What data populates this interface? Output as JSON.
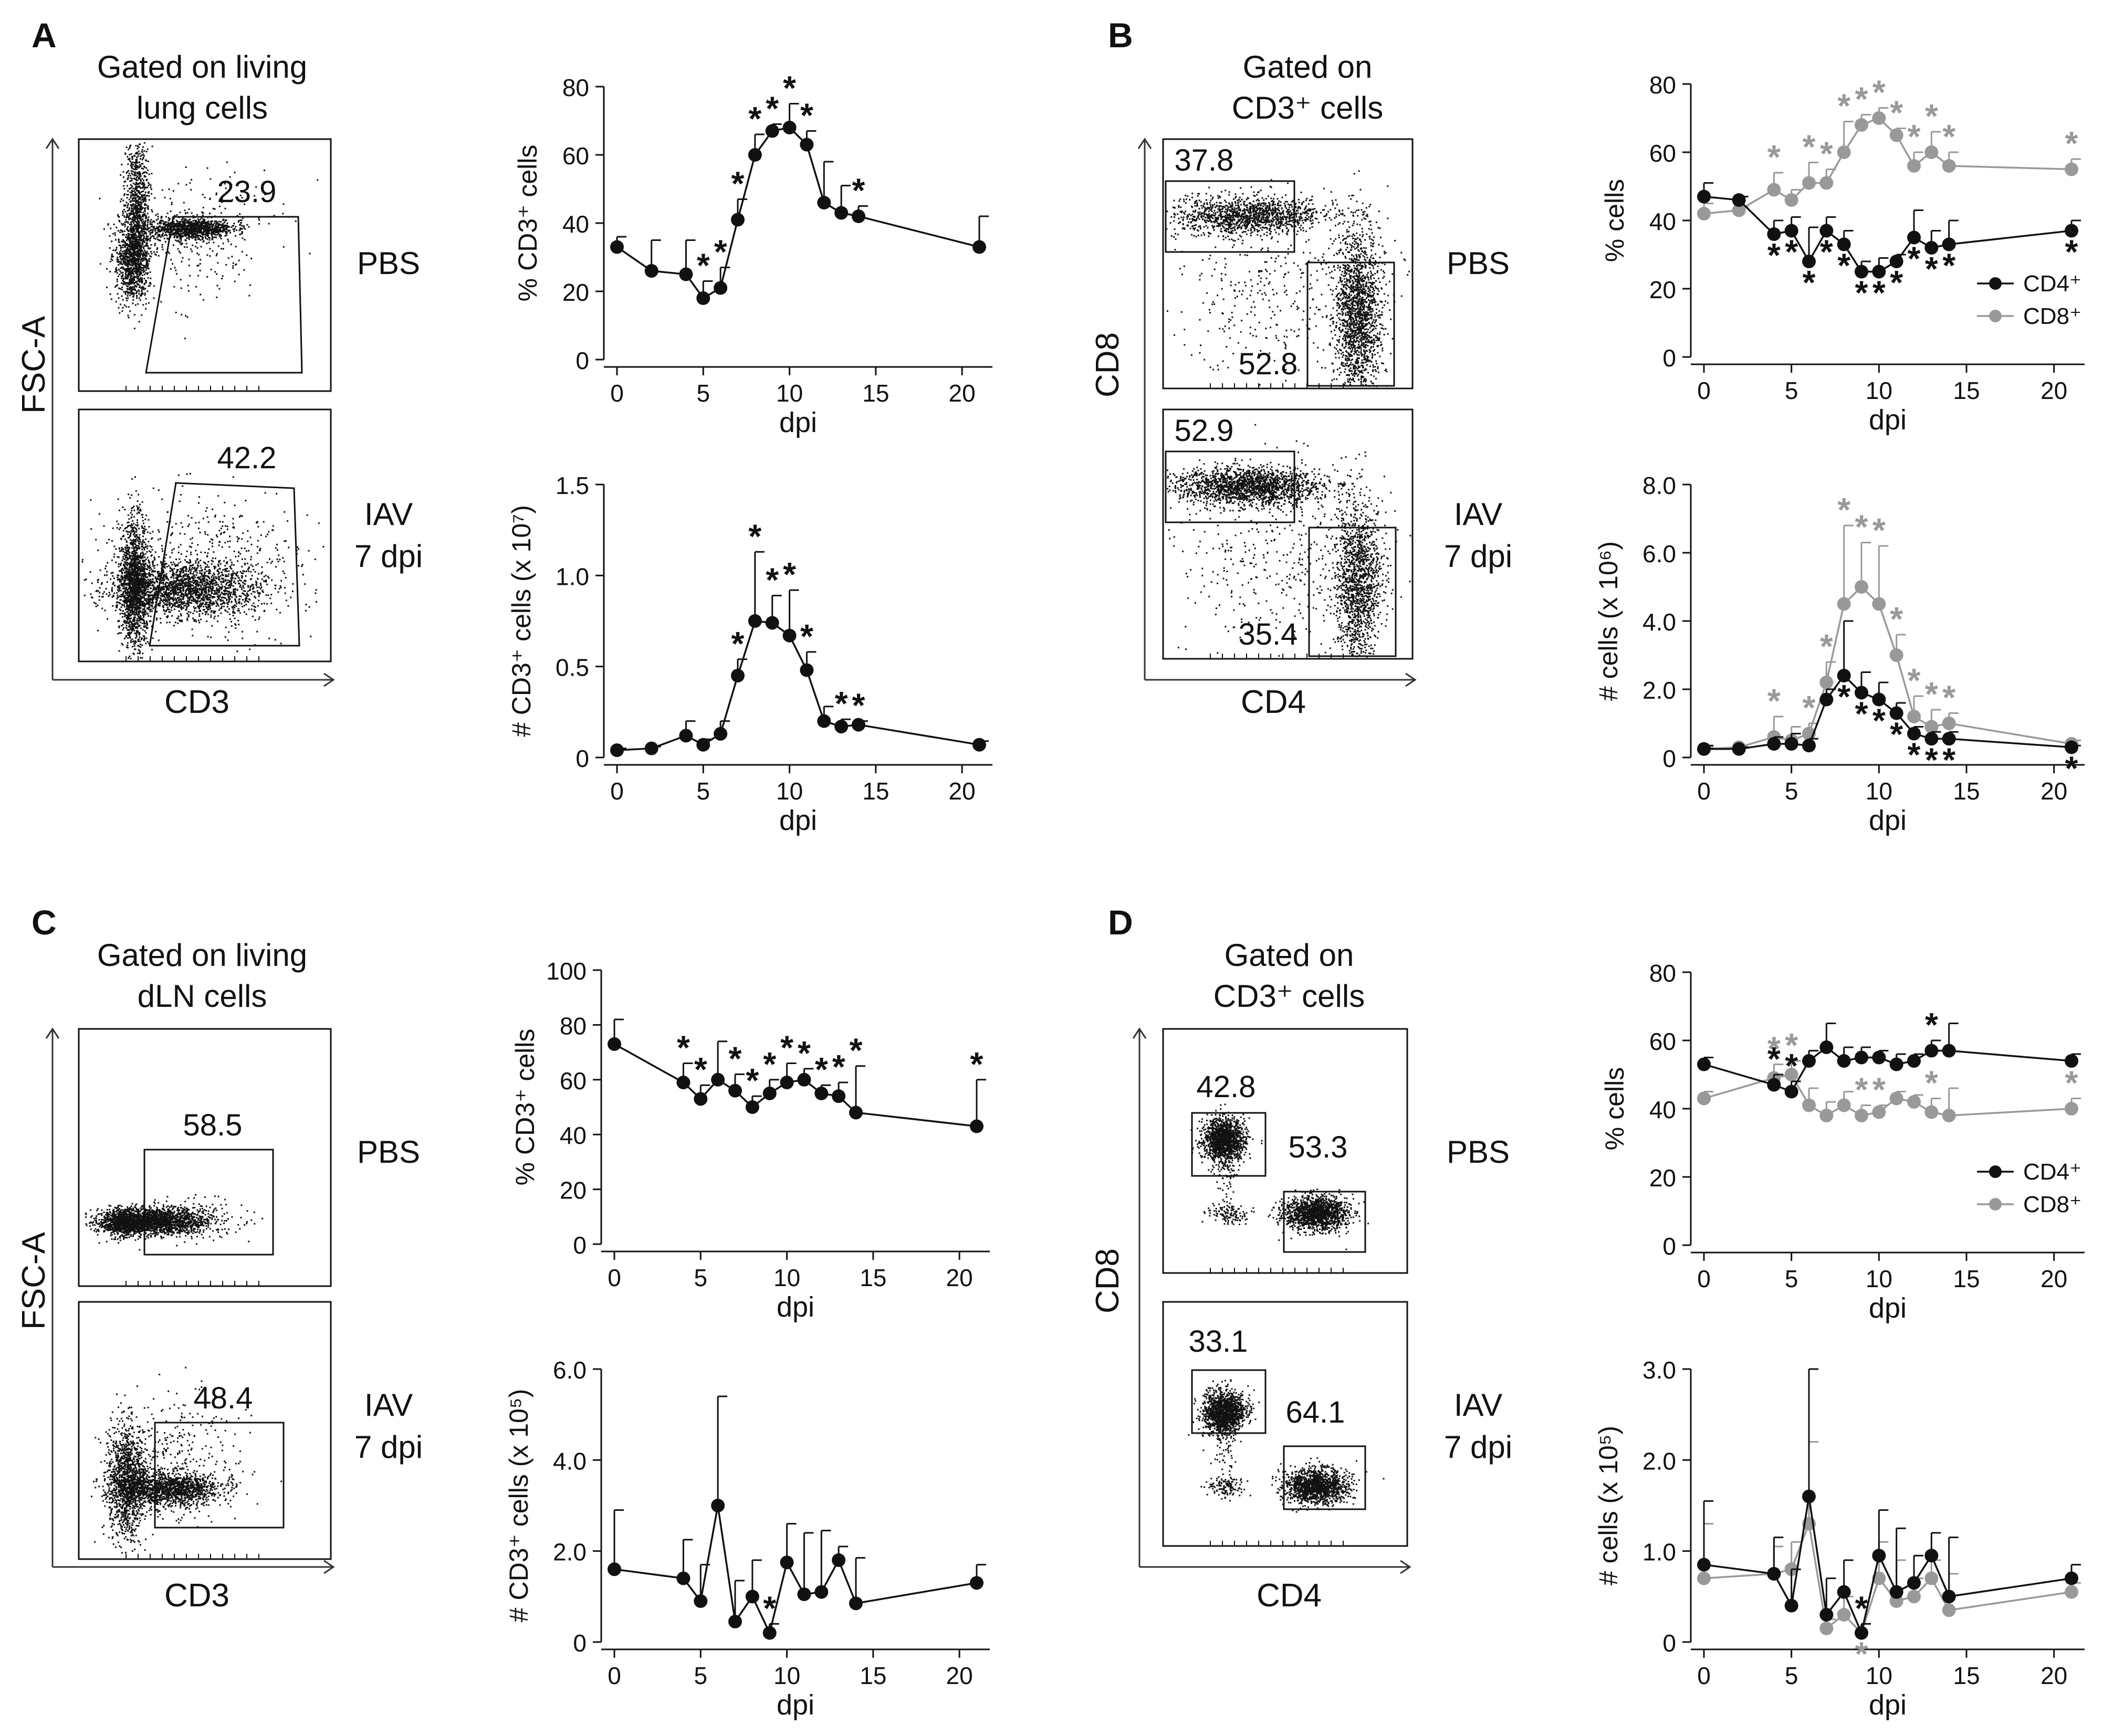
{
  "colors": {
    "black": "#111111",
    "gray": "#999999"
  },
  "panels": {
    "A": {
      "letter": "A",
      "flow_title": [
        "Gated on living",
        "lung cells"
      ],
      "flow_ylabel": "FSC-A",
      "flow_xlabel": "CD3",
      "gate_values": [
        "23.9",
        "42.2"
      ],
      "cond_labels": [
        [
          "PBS"
        ],
        [
          "IAV",
          "7 dpi"
        ]
      ]
    },
    "B": {
      "letter": "B",
      "flow_title": [
        "Gated on",
        "CD3⁺ cells"
      ],
      "flow_ylabel": "CD8",
      "flow_xlabel": "CD4",
      "gate_values": [
        "37.8",
        "52.8",
        "52.9",
        "35.4"
      ],
      "cond_labels": [
        [
          "PBS"
        ],
        [
          "IAV",
          "7 dpi"
        ]
      ]
    },
    "C": {
      "letter": "C",
      "flow_title": [
        "Gated on living",
        "dLN cells"
      ],
      "flow_ylabel": "FSC-A",
      "flow_xlabel": "CD3",
      "gate_values": [
        "58.5",
        "48.4"
      ],
      "cond_labels": [
        [
          "PBS"
        ],
        [
          "IAV",
          "7 dpi"
        ]
      ]
    },
    "D": {
      "letter": "D",
      "flow_title": [
        "Gated on",
        "CD3⁺ cells"
      ],
      "flow_ylabel": "CD8",
      "flow_xlabel": "CD4",
      "gate_values": [
        "42.8",
        "53.3",
        "33.1",
        "64.1"
      ],
      "cond_labels": [
        [
          "PBS"
        ],
        [
          "IAV",
          "7 dpi"
        ]
      ]
    }
  },
  "chart_data": [
    {
      "id": "A-top",
      "type": "line",
      "xlabel": "dpi",
      "ylabel": "% CD3⁺ cells",
      "xlim": [
        0,
        21
      ],
      "xticks": [
        "0",
        "5",
        "10",
        "15",
        "20"
      ],
      "ylim": [
        0,
        80
      ],
      "yticks": [
        "0",
        "20",
        "40",
        "60",
        "80"
      ],
      "series": [
        {
          "name": "CD3⁺",
          "color": "black",
          "x": [
            0,
            2,
            4,
            5,
            6,
            7,
            8,
            9,
            10,
            11,
            12,
            13,
            14,
            21
          ],
          "values": [
            33,
            26,
            25,
            18,
            21,
            41,
            60,
            67,
            68,
            63,
            46,
            43,
            42,
            33
          ],
          "err": [
            3,
            9,
            10,
            5,
            6,
            6,
            6,
            2,
            7,
            4,
            12,
            8,
            3,
            9
          ],
          "stars": [
            3,
            4,
            5,
            6,
            7,
            8,
            9,
            12
          ]
        }
      ],
      "legend": []
    },
    {
      "id": "A-bottom",
      "type": "line",
      "xlabel": "dpi",
      "ylabel": "# CD3⁺ cells (x 10⁷)",
      "xlim": [
        0,
        21
      ],
      "xticks": [
        "0",
        "5",
        "10",
        "15",
        "20"
      ],
      "ylim": [
        0,
        1.5
      ],
      "yticks": [
        "0",
        "0.5",
        "1.0",
        "1.5"
      ],
      "series": [
        {
          "name": "CD3⁺",
          "color": "black",
          "x": [
            0,
            2,
            4,
            5,
            6,
            7,
            8,
            9,
            10,
            11,
            12,
            13,
            14,
            21
          ],
          "values": [
            0.04,
            0.05,
            0.12,
            0.07,
            0.13,
            0.45,
            0.75,
            0.74,
            0.67,
            0.48,
            0.2,
            0.17,
            0.18,
            0.07
          ],
          "err": [
            0.01,
            0.01,
            0.08,
            0.03,
            0.07,
            0.09,
            0.38,
            0.15,
            0.25,
            0.1,
            0.08,
            0.04,
            0.02,
            0.02
          ],
          "stars": [
            5,
            6,
            7,
            8,
            9,
            11,
            12
          ]
        }
      ],
      "legend": []
    },
    {
      "id": "B-top",
      "type": "line",
      "xlabel": "dpi",
      "ylabel": "% cells",
      "xlim": [
        0,
        21
      ],
      "xticks": [
        "0",
        "5",
        "10",
        "15",
        "20"
      ],
      "ylim": [
        0,
        80
      ],
      "yticks": [
        "0",
        "20",
        "40",
        "60",
        "80"
      ],
      "series": [
        {
          "name": "CD4⁺",
          "color": "black",
          "x": [
            0,
            2,
            4,
            5,
            6,
            7,
            8,
            9,
            10,
            11,
            12,
            13,
            14,
            21
          ],
          "values": [
            47,
            46,
            36,
            37,
            28,
            37,
            33,
            25,
            25,
            28,
            35,
            32,
            33,
            37
          ],
          "err": [
            4,
            1,
            4,
            4,
            10,
            4,
            4,
            3,
            4,
            2,
            8,
            5,
            7,
            3
          ],
          "stars": [
            2,
            3,
            4,
            5,
            6,
            7,
            8,
            9,
            10,
            11,
            12,
            13
          ],
          "star_side": "below"
        },
        {
          "name": "CD8⁺",
          "color": "gray",
          "x": [
            0,
            2,
            4,
            5,
            6,
            7,
            8,
            9,
            10,
            11,
            12,
            13,
            14,
            21
          ],
          "values": [
            42,
            43,
            49,
            46,
            51,
            51,
            60,
            68,
            70,
            65,
            56,
            60,
            56,
            55
          ],
          "err": [
            3,
            1,
            5,
            3,
            6,
            4,
            9,
            3,
            3,
            2,
            4,
            6,
            4,
            3
          ],
          "stars": [
            2,
            4,
            5,
            6,
            7,
            8,
            9,
            10,
            11,
            12,
            13
          ],
          "star_side": "above"
        }
      ],
      "legend": [
        "CD4⁺",
        "CD8⁺"
      ]
    },
    {
      "id": "B-bottom",
      "type": "line",
      "xlabel": "dpi",
      "ylabel": "# cells (x 10⁶)",
      "xlim": [
        0,
        21
      ],
      "xticks": [
        "0",
        "5",
        "10",
        "15",
        "20"
      ],
      "ylim": [
        0,
        8
      ],
      "yticks": [
        "0",
        "2.0",
        "4.0",
        "6.0",
        "8.0"
      ],
      "series": [
        {
          "name": "CD4⁺",
          "color": "black",
          "x": [
            0,
            2,
            4,
            5,
            6,
            7,
            8,
            9,
            10,
            11,
            12,
            13,
            14,
            21
          ],
          "values": [
            0.25,
            0.25,
            0.4,
            0.4,
            0.35,
            1.7,
            2.4,
            1.9,
            1.7,
            1.3,
            0.7,
            0.55,
            0.55,
            0.3
          ],
          "err": [
            0.1,
            0.05,
            0.2,
            0.3,
            0.2,
            0.3,
            1.6,
            0.6,
            0.5,
            0.3,
            0.2,
            0.2,
            0.2,
            0.05
          ],
          "stars": [
            6,
            7,
            8,
            9,
            10,
            11,
            12,
            13
          ],
          "star_side": "below"
        },
        {
          "name": "CD8⁺",
          "color": "gray",
          "x": [
            0,
            2,
            4,
            5,
            6,
            7,
            8,
            9,
            10,
            11,
            12,
            13,
            14,
            21
          ],
          "values": [
            0.25,
            0.3,
            0.6,
            0.5,
            0.7,
            2.2,
            4.5,
            5.0,
            4.5,
            3.0,
            1.2,
            0.9,
            1.0,
            0.4
          ],
          "err": [
            0.05,
            0.05,
            0.6,
            0.4,
            0.3,
            0.6,
            2.3,
            1.3,
            1.7,
            0.6,
            0.6,
            0.5,
            0.3,
            0.1
          ],
          "stars": [
            2,
            4,
            5,
            6,
            7,
            8,
            9,
            10,
            11,
            12
          ],
          "star_side": "above"
        }
      ],
      "legend": []
    },
    {
      "id": "C-top",
      "type": "line",
      "xlabel": "dpi",
      "ylabel": "% CD3⁺ cells",
      "xlim": [
        0,
        21
      ],
      "xticks": [
        "0",
        "5",
        "10",
        "15",
        "20"
      ],
      "ylim": [
        0,
        100
      ],
      "yticks": [
        "0",
        "20",
        "40",
        "60",
        "80",
        "100"
      ],
      "series": [
        {
          "name": "CD3⁺",
          "color": "black",
          "x": [
            0,
            4,
            5,
            6,
            7,
            8,
            9,
            10,
            11,
            12,
            13,
            14,
            21
          ],
          "values": [
            73,
            59,
            53,
            60,
            56,
            50,
            55,
            59,
            60,
            55,
            54,
            48,
            43
          ],
          "err": [
            9,
            7,
            5,
            14,
            6,
            4,
            5,
            7,
            4,
            3,
            5,
            17,
            17
          ],
          "stars": [
            1,
            2,
            4,
            5,
            6,
            7,
            8,
            9,
            10,
            11,
            12
          ]
        }
      ],
      "legend": []
    },
    {
      "id": "C-bottom",
      "type": "line",
      "xlabel": "dpi",
      "ylabel": "# CD3⁺ cells (x 10⁵)",
      "xlim": [
        0,
        21
      ],
      "xticks": [
        "0",
        "5",
        "10",
        "15",
        "20"
      ],
      "ylim": [
        0,
        6
      ],
      "yticks": [
        "0",
        "2.0",
        "4.0",
        "6.0"
      ],
      "series": [
        {
          "name": "CD3⁺",
          "color": "black",
          "x": [
            0,
            4,
            5,
            6,
            7,
            8,
            9,
            10,
            11,
            12,
            13,
            14,
            21
          ],
          "values": [
            1.6,
            1.4,
            0.9,
            3.0,
            0.45,
            1.0,
            0.2,
            1.75,
            1.05,
            1.1,
            1.8,
            0.85,
            1.3
          ],
          "err": [
            1.3,
            0.85,
            0.8,
            2.4,
            0.9,
            0.8,
            0.2,
            0.85,
            1.35,
            1.35,
            0.3,
            1.0,
            0.4
          ],
          "stars": [
            6
          ]
        }
      ],
      "legend": []
    },
    {
      "id": "D-top",
      "type": "line",
      "xlabel": "dpi",
      "ylabel": "% cells",
      "xlim": [
        0,
        21
      ],
      "xticks": [
        "0",
        "5",
        "10",
        "15",
        "20"
      ],
      "ylim": [
        0,
        80
      ],
      "yticks": [
        "0",
        "20",
        "40",
        "60",
        "80"
      ],
      "series": [
        {
          "name": "CD4⁺",
          "color": "black",
          "x": [
            0,
            4,
            5,
            6,
            7,
            8,
            9,
            10,
            11,
            12,
            13,
            14,
            21
          ],
          "values": [
            53,
            47,
            45,
            54,
            58,
            54,
            55,
            55,
            53,
            54,
            57,
            57,
            54
          ],
          "err": [
            2,
            3,
            3,
            3,
            7,
            4,
            3,
            2,
            3,
            2,
            3,
            8,
            2
          ],
          "stars": [
            1,
            2,
            10
          ],
          "star_side": "mixed"
        },
        {
          "name": "CD8⁺",
          "color": "gray",
          "x": [
            0,
            4,
            5,
            6,
            7,
            8,
            9,
            10,
            11,
            12,
            13,
            14,
            21
          ],
          "values": [
            43,
            49,
            50,
            41,
            38,
            41,
            38,
            39,
            43,
            42,
            39,
            38,
            40
          ],
          "err": [
            2,
            4,
            4,
            5,
            4,
            4,
            3,
            2,
            2,
            2,
            4,
            8,
            3
          ],
          "stars": [
            1,
            2,
            6,
            7,
            10,
            12
          ],
          "star_side": "mixed"
        }
      ],
      "legend": [
        "CD4⁺",
        "CD8⁺"
      ]
    },
    {
      "id": "D-bottom",
      "type": "line",
      "xlabel": "dpi",
      "ylabel": "# cells (x 10⁵)",
      "xlim": [
        0,
        21
      ],
      "xticks": [
        "0",
        "5",
        "10",
        "15",
        "20"
      ],
      "ylim": [
        0,
        3
      ],
      "yticks": [
        "0",
        "1.0",
        "2.0",
        "3.0"
      ],
      "series": [
        {
          "name": "CD4⁺",
          "color": "black",
          "x": [
            0,
            4,
            5,
            6,
            7,
            8,
            9,
            10,
            11,
            12,
            13,
            14,
            21
          ],
          "values": [
            0.85,
            0.75,
            0.4,
            1.6,
            0.3,
            0.55,
            0.1,
            0.95,
            0.55,
            0.65,
            0.95,
            0.5,
            0.7
          ],
          "err": [
            0.7,
            0.4,
            0.4,
            1.4,
            0.4,
            0.35,
            0.1,
            0.5,
            0.7,
            0.3,
            0.25,
            0.65,
            0.15
          ],
          "stars": [
            6
          ],
          "star_side": "above"
        },
        {
          "name": "CD8⁺",
          "color": "gray",
          "x": [
            0,
            4,
            5,
            6,
            7,
            8,
            9,
            10,
            11,
            12,
            13,
            14,
            21
          ],
          "values": [
            0.7,
            0.75,
            0.8,
            1.3,
            0.15,
            0.3,
            0.1,
            0.7,
            0.45,
            0.5,
            0.7,
            0.35,
            0.55
          ],
          "err": [
            0.6,
            0.3,
            0.3,
            0.9,
            0.1,
            0.2,
            0.1,
            0.4,
            0.45,
            0.2,
            0.2,
            0.4,
            0.1
          ],
          "stars": [
            6
          ],
          "star_side": "below"
        }
      ],
      "legend": []
    }
  ]
}
